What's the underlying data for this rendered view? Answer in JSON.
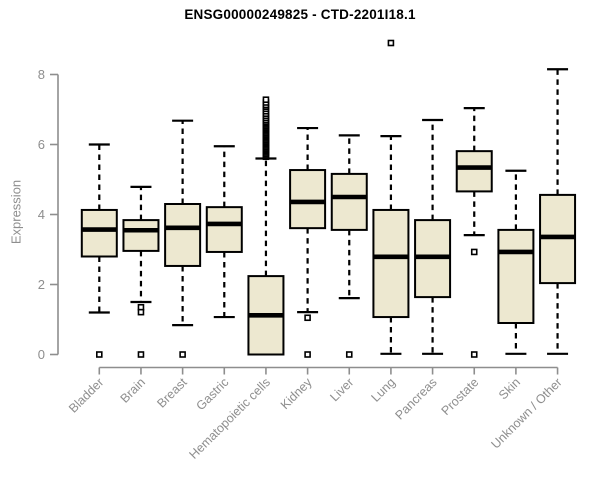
{
  "chart_data": {
    "type": "boxplot",
    "title": "ENSG00000249825 - CTD-2201I18.1",
    "ylabel": "Expression",
    "xlabel": "",
    "ylim": [
      0,
      8
    ],
    "yticks": [
      "0",
      "2",
      "4",
      "6",
      "8"
    ],
    "grid": false,
    "legend": "none",
    "categories": [
      "Bladder",
      "Brain",
      "Breast",
      "Gastric",
      "Hematopoietic cells",
      "Kidney",
      "Liver",
      "Lung",
      "Pancreas",
      "Prostate",
      "Skin",
      "Unknown / Other"
    ],
    "series": [
      {
        "category": "Bladder",
        "whisker_low": 1.2,
        "q1": 2.8,
        "median": 3.57,
        "q3": 4.13,
        "whisker_high": 6.0,
        "outliers": [
          0
        ]
      },
      {
        "category": "Brain",
        "whisker_low": 1.5,
        "q1": 2.96,
        "median": 3.55,
        "q3": 3.84,
        "whisker_high": 4.79,
        "outliers": [
          1.35,
          1.21,
          0
        ]
      },
      {
        "category": "Breast",
        "whisker_low": 0.84,
        "q1": 2.53,
        "median": 3.62,
        "q3": 4.3,
        "whisker_high": 6.68,
        "outliers": [
          0
        ]
      },
      {
        "category": "Gastric",
        "whisker_low": 1.07,
        "q1": 2.93,
        "median": 3.73,
        "q3": 4.21,
        "whisker_high": 5.95,
        "outliers": []
      },
      {
        "category": "Hematopoietic cells",
        "whisker_low": 0.0,
        "q1": 0.0,
        "median": 1.12,
        "q3": 2.24,
        "whisker_high": 5.6,
        "outliers": [
          5.65,
          5.69,
          5.73,
          5.77,
          5.81,
          5.85,
          5.89,
          5.93,
          5.97,
          6.01,
          6.05,
          6.09,
          6.13,
          6.17,
          6.21,
          6.25,
          6.29,
          6.33,
          6.37,
          6.41,
          6.45,
          6.49,
          6.53,
          6.57,
          6.61,
          6.65,
          6.7,
          6.76,
          6.82,
          6.88,
          6.95,
          7.02,
          7.08,
          7.13,
          7.2,
          7.28
        ]
      },
      {
        "category": "Kidney",
        "whisker_low": 1.21,
        "q1": 3.61,
        "median": 4.36,
        "q3": 5.27,
        "whisker_high": 6.47,
        "outliers": [
          1.05,
          0
        ]
      },
      {
        "category": "Liver",
        "whisker_low": 1.61,
        "q1": 3.56,
        "median": 4.5,
        "q3": 5.16,
        "whisker_high": 6.26,
        "outliers": [
          0
        ]
      },
      {
        "category": "Lung",
        "whisker_low": 0.02,
        "q1": 1.07,
        "median": 2.79,
        "q3": 4.13,
        "whisker_high": 6.24,
        "outliers": [
          8.9
        ]
      },
      {
        "category": "Pancreas",
        "whisker_low": 0.02,
        "q1": 1.64,
        "median": 2.79,
        "q3": 3.84,
        "whisker_high": 6.7,
        "outliers": []
      },
      {
        "category": "Prostate",
        "whisker_low": 3.41,
        "q1": 4.66,
        "median": 5.34,
        "q3": 5.81,
        "whisker_high": 7.04,
        "outliers": [
          2.93,
          0
        ]
      },
      {
        "category": "Skin",
        "whisker_low": 0.02,
        "q1": 0.9,
        "median": 2.93,
        "q3": 3.56,
        "whisker_high": 5.25,
        "outliers": []
      },
      {
        "category": "Unknown / Other",
        "whisker_low": 0.02,
        "q1": 2.04,
        "median": 3.36,
        "q3": 4.56,
        "whisker_high": 8.15,
        "outliers": []
      }
    ],
    "colors": {
      "box_fill": "#ede8d0",
      "box_stroke": "#000000",
      "median": "#000000",
      "whisker": "#000000",
      "outlier_stroke": "#000000",
      "outlier_fill": "#ffffff",
      "axis": "#8e8e8e",
      "tick_label": "#8e8e8e",
      "title": "#000000"
    }
  }
}
